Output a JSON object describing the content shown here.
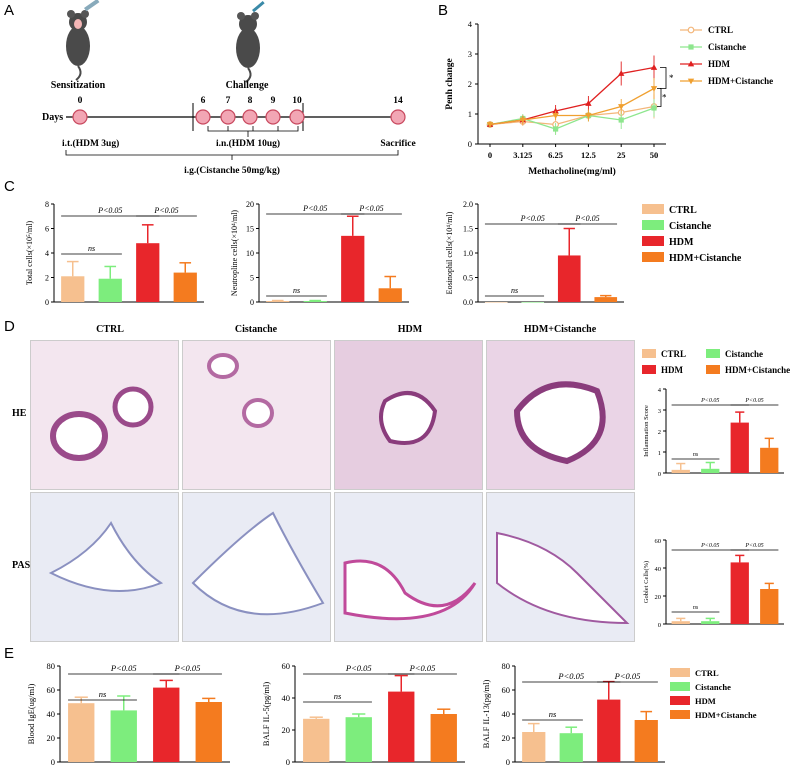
{
  "panels": {
    "a": "A",
    "b": "B",
    "c": "C",
    "d": "D",
    "e": "E"
  },
  "colors": {
    "ctrl": "#f6c08f",
    "cistanche": "#7ded7d",
    "hdm": "#e8262b",
    "hdm_cistanche": "#f47b1f",
    "hdm_line": "#e02020",
    "ctrl_line": "#f3b67a",
    "cis_line": "#8ee68e",
    "hdmc_line": "#f0a030"
  },
  "panelA": {
    "sensitization": "Sensitization",
    "challenge": "Challenge",
    "days_label": "Days",
    "day_numbers": [
      "0",
      "6",
      "7",
      "8",
      "9",
      "10",
      "14"
    ],
    "it_label": "i.t.(HDM 3ug)",
    "in_label": "i.n.(HDM 10ug)",
    "sacrifice": "Sacrifice",
    "ig_label": "i.g.(Cistanche 50mg/kg)"
  },
  "legend_labels": {
    "ctrl": "CTRL",
    "cistanche": "Cistanche",
    "hdm": "HDM",
    "hdm_cistanche": "HDM+Cistanche"
  },
  "significance": {
    "p": "P<0.05",
    "ns": "ns",
    "star": "*"
  },
  "panelD": {
    "col_titles": [
      "CTRL",
      "Cistanche",
      "HDM",
      "HDM+Cistanche"
    ],
    "row_he": "HE",
    "row_pas": "PAS"
  },
  "chart_data": [
    {
      "id": "B",
      "type": "line",
      "title": "",
      "xlabel": "Methacholine(mg/ml)",
      "ylabel": "Penh change",
      "categories": [
        "0",
        "3.125",
        "6.25",
        "12.5",
        "25",
        "50"
      ],
      "ylim": [
        0,
        4
      ],
      "yticks": [
        "0",
        "1",
        "2",
        "3",
        "4"
      ],
      "series": [
        {
          "name": "CTRL",
          "values": [
            0.65,
            0.75,
            0.65,
            0.95,
            1.05,
            1.25
          ],
          "err": [
            0.1,
            0.15,
            0.3,
            0.15,
            0.2,
            0.4
          ]
        },
        {
          "name": "Cistanche",
          "values": [
            0.65,
            0.85,
            0.5,
            0.95,
            0.8,
            1.2
          ],
          "err": [
            0.1,
            0.15,
            0.2,
            0.2,
            0.3,
            0.3
          ]
        },
        {
          "name": "HDM",
          "values": [
            0.65,
            0.8,
            1.1,
            1.35,
            2.35,
            2.55
          ],
          "err": [
            0.1,
            0.15,
            0.2,
            0.25,
            0.4,
            0.4
          ]
        },
        {
          "name": "HDM+Cistanche",
          "values": [
            0.65,
            0.8,
            0.95,
            0.95,
            1.25,
            1.85
          ],
          "err": [
            0.1,
            0.15,
            0.15,
            0.2,
            0.25,
            0.35
          ]
        }
      ]
    },
    {
      "id": "C1",
      "type": "bar",
      "ylabel": "Total cells(×10⁵/ml)",
      "categories": [
        "CTRL",
        "Cistanche",
        "HDM",
        "HDM+Cistanche"
      ],
      "values": [
        2.1,
        1.9,
        4.8,
        2.4
      ],
      "err": [
        1.2,
        1.0,
        1.5,
        0.8
      ],
      "ylim": [
        0,
        8
      ],
      "yticks": [
        "0",
        "2",
        "4",
        "6",
        "8"
      ]
    },
    {
      "id": "C2",
      "type": "bar",
      "ylabel": "Neutropline cells(×10⁴/ml)",
      "categories": [
        "CTRL",
        "Cistanche",
        "HDM",
        "HDM+Cistanche"
      ],
      "values": [
        0.2,
        0.2,
        13.5,
        2.8
      ],
      "err": [
        0.1,
        0.1,
        4.0,
        2.4
      ],
      "ylim": [
        0,
        20
      ],
      "yticks": [
        "0",
        "5",
        "10",
        "15",
        "20"
      ]
    },
    {
      "id": "C3",
      "type": "bar",
      "ylabel": "Eosinophil cells(×10⁴/ml)",
      "categories": [
        "CTRL",
        "Cistanche",
        "HDM",
        "HDM+Cistanche"
      ],
      "values": [
        0.0,
        0.0,
        0.95,
        0.1
      ],
      "err": [
        0.0,
        0.0,
        0.55,
        0.03
      ],
      "ylim": [
        0,
        2.0
      ],
      "yticks": [
        "0.0",
        "0.5",
        "1.0",
        "1.5",
        "2.0"
      ]
    },
    {
      "id": "D1",
      "type": "bar",
      "ylabel": "Inflammation Score",
      "categories": [
        "CTRL",
        "Cistanche",
        "HDM",
        "HDM+Cistanche"
      ],
      "values": [
        0.15,
        0.2,
        2.4,
        1.2
      ],
      "err": [
        0.3,
        0.3,
        0.5,
        0.45
      ],
      "ylim": [
        0,
        4
      ],
      "yticks": [
        "0",
        "1",
        "2",
        "3",
        "4"
      ]
    },
    {
      "id": "D2",
      "type": "bar",
      "ylabel": "Goblet Cells(%)",
      "categories": [
        "CTRL",
        "Cistanche",
        "HDM",
        "HDM+Cistanche"
      ],
      "values": [
        2,
        2,
        44,
        25
      ],
      "err": [
        2,
        2,
        5,
        4
      ],
      "ylim": [
        0,
        60
      ],
      "yticks": [
        "0",
        "20",
        "40",
        "60"
      ]
    },
    {
      "id": "E1",
      "type": "bar",
      "ylabel": "Blood IgE(ug/ml)",
      "categories": [
        "CTRL",
        "Cistanche",
        "HDM",
        "HDM+Cistanche"
      ],
      "values": [
        49,
        43,
        62,
        50
      ],
      "err": [
        5,
        12,
        6,
        3
      ],
      "ylim": [
        0,
        80
      ],
      "yticks": [
        "0",
        "20",
        "40",
        "60",
        "80"
      ]
    },
    {
      "id": "E2",
      "type": "bar",
      "ylabel": "BALF IL-5(pg/ml)",
      "categories": [
        "CTRL",
        "Cistanche",
        "HDM",
        "HDM+Cistanche"
      ],
      "values": [
        27,
        28,
        44,
        30
      ],
      "err": [
        1,
        2,
        10,
        3
      ],
      "ylim": [
        0,
        60
      ],
      "yticks": [
        "0",
        "20",
        "40",
        "60"
      ]
    },
    {
      "id": "E3",
      "type": "bar",
      "ylabel": "BALF IL-13(pg/ml)",
      "categories": [
        "CTRL",
        "Cistanche",
        "HDM",
        "HDM+Cistanche"
      ],
      "values": [
        25,
        24,
        52,
        35
      ],
      "err": [
        7,
        5,
        15,
        7
      ],
      "ylim": [
        0,
        80
      ],
      "yticks": [
        "0",
        "20",
        "40",
        "60",
        "80"
      ]
    }
  ]
}
